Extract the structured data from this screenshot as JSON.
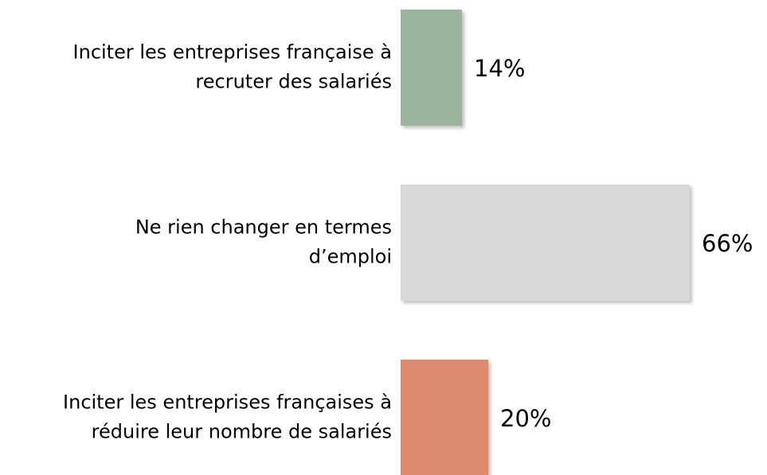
{
  "chart_data": {
    "type": "bar",
    "categories": [
      [
        "Inciter les entreprises française à",
        "recruter des salariés"
      ],
      [
        "Ne rien changer en termes",
        "d’emploi"
      ],
      [
        "Inciter les entreprises françaises à",
        "réduire leur nombre de salariés"
      ]
    ],
    "values": [
      14,
      66,
      20
    ],
    "value_labels": [
      "14%",
      "66%",
      "20%"
    ],
    "colors": [
      "#9bb59d",
      "#d9d9d9",
      "#dc8b6e"
    ]
  }
}
